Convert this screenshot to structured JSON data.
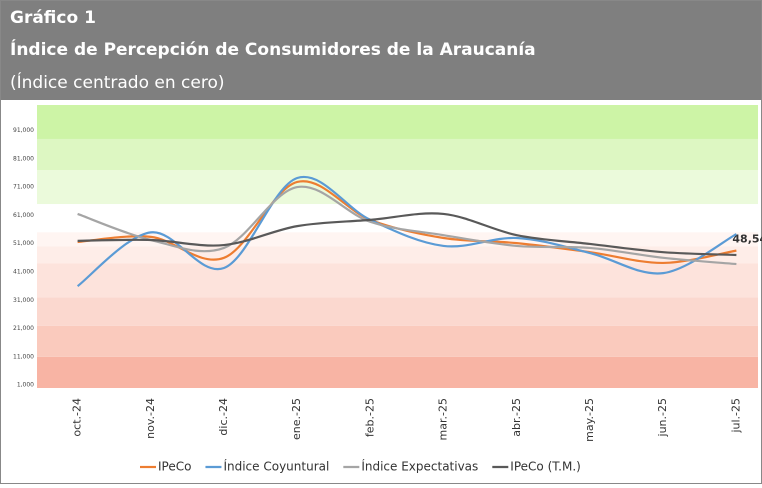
{
  "chart_data": {
    "type": "line",
    "title": "Gráfico 1",
    "subtitle": "Índice de Percepción de Consumidores de la Araucanía",
    "note": "(Índice centrado en cero)",
    "categories": [
      "oct.-24",
      "nov.-24",
      "dic.-24",
      "ene.-25",
      "feb.-25",
      "mar.-25",
      "abr.-25",
      "may.-25",
      "jun.-25",
      "jul.-25"
    ],
    "series": [
      {
        "name": "IPeCo",
        "color": "#ed7d31",
        "values": [
          51.6,
          53.4,
          46,
          72.8,
          59.4,
          53,
          51.2,
          48,
          44.2,
          48.54
        ],
        "value_labels": [
          null,
          null,
          null,
          null,
          null,
          null,
          null,
          null,
          null,
          "48,54"
        ]
      },
      {
        "name": "Índice Coyuntural",
        "color": "#5b9bd5",
        "values": [
          36,
          55,
          42.4,
          74.2,
          59.4,
          50.2,
          53,
          47.7,
          40.6,
          54.4
        ]
      },
      {
        "name": "Índice Expectativas",
        "color": "#a5a5a5",
        "values": [
          61.5,
          52.3,
          49.5,
          71,
          58.7,
          54,
          50.2,
          49.5,
          46,
          43.8
        ]
      },
      {
        "name": "IPeCo (T.M.)",
        "color": "#595959",
        "values": [
          52,
          52.3,
          50.5,
          57.2,
          59.4,
          61.5,
          54,
          50.9,
          48,
          47
        ]
      }
    ],
    "ylim": [
      0,
      100
    ],
    "yticks": [
      {
        "value": 1,
        "label": "1,000"
      },
      {
        "value": 11,
        "label": "11,000"
      },
      {
        "value": 21,
        "label": "21,000"
      },
      {
        "value": 31,
        "label": "31,000"
      },
      {
        "value": 41,
        "label": "41,000"
      },
      {
        "value": 51,
        "label": "51,000"
      },
      {
        "value": 61,
        "label": "61,000"
      },
      {
        "value": 71,
        "label": "71,000"
      },
      {
        "value": 81,
        "label": "81,000"
      },
      {
        "value": 91,
        "label": "91,000"
      }
    ],
    "bands": [
      {
        "from": 0,
        "to": 11,
        "color": "#f8b4a4"
      },
      {
        "from": 11,
        "to": 22,
        "color": "#facabd"
      },
      {
        "from": 22,
        "to": 32,
        "color": "#fbd8cf"
      },
      {
        "from": 32,
        "to": 44,
        "color": "#fde3dc"
      },
      {
        "from": 44,
        "to": 50,
        "color": "#feede8"
      },
      {
        "from": 50,
        "to": 55,
        "color": "#fff5f2"
      },
      {
        "from": 65,
        "to": 77,
        "color": "#ebfadb"
      },
      {
        "from": 77,
        "to": 88,
        "color": "#ddf7c2"
      },
      {
        "from": 88,
        "to": 100,
        "color": "#cdf4a6"
      }
    ],
    "legend": "bottom"
  }
}
